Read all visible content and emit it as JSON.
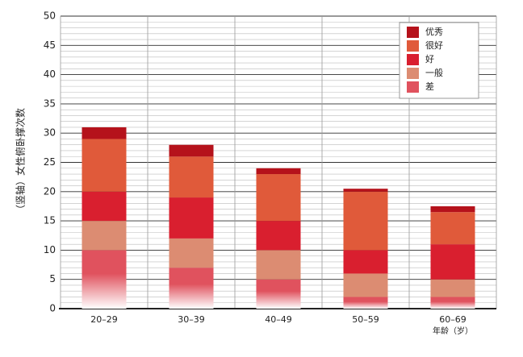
{
  "chart_data": {
    "type": "stacked_bar",
    "y_label": "（竖轴）女性俯卧撑次数",
    "x_label": "年龄（岁）",
    "categories": [
      "20–29",
      "30–39",
      "40–49",
      "50–59",
      "60–69"
    ],
    "series": [
      {
        "name": "差",
        "color": "#e0525e",
        "values": [
          10,
          7,
          5,
          2,
          2
        ]
      },
      {
        "name": "一般",
        "color": "#dc8c72",
        "values": [
          5,
          5,
          5,
          4,
          3
        ]
      },
      {
        "name": "好",
        "color": "#d91f2f",
        "values": [
          5,
          7,
          5,
          4,
          6
        ]
      },
      {
        "name": "很好",
        "color": "#e05a3a",
        "values": [
          9,
          7,
          8,
          10,
          5.5
        ]
      },
      {
        "name": "优秀",
        "color": "#b5121b",
        "values": [
          2,
          2,
          1,
          0.5,
          1
        ]
      }
    ],
    "ylim": [
      0,
      50
    ],
    "yticks": [
      0,
      5,
      10,
      15,
      20,
      25,
      30,
      35,
      40,
      45,
      50
    ],
    "grid": true
  }
}
